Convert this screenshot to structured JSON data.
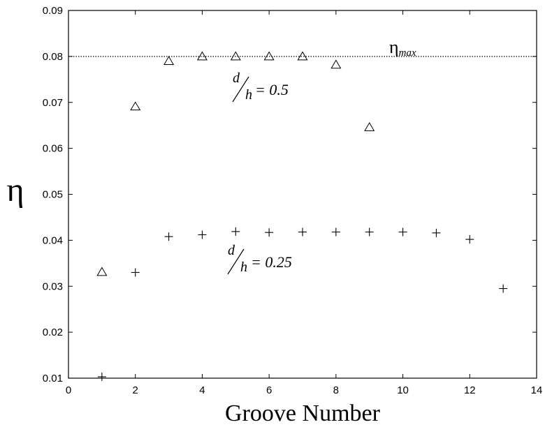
{
  "chart_data": {
    "type": "scatter",
    "xlabel": "Groove Number",
    "ylabel": "η",
    "xlim": [
      0,
      14
    ],
    "ylim": [
      0.01,
      0.09
    ],
    "xticks": [
      "0",
      "2",
      "4",
      "6",
      "8",
      "10",
      "12",
      "14"
    ],
    "yticks": [
      "0.01",
      "0.02",
      "0.03",
      "0.04",
      "0.05",
      "0.06",
      "0.07",
      "0.08",
      "0.09"
    ],
    "grid": false,
    "reference_line": {
      "y": 0.08,
      "style": "dotted",
      "label_main": "η",
      "label_sub": "max"
    },
    "series": [
      {
        "marker": "triangle",
        "x": [
          1,
          2,
          3,
          4,
          5,
          6,
          7,
          8,
          9
        ],
        "y": [
          0.033,
          0.069,
          0.0789,
          0.0799,
          0.0799,
          0.0799,
          0.0799,
          0.0781,
          0.0645
        ]
      },
      {
        "marker": "plus",
        "x": [
          1,
          2,
          3,
          4,
          5,
          6,
          7,
          8,
          9,
          10,
          11,
          12,
          13
        ],
        "y": [
          0.0103,
          0.033,
          0.0408,
          0.0412,
          0.0419,
          0.0417,
          0.0418,
          0.0418,
          0.0418,
          0.0418,
          0.0416,
          0.0402,
          0.0295
        ]
      }
    ],
    "annotations": [
      {
        "id": "d05",
        "numerator": "d",
        "denominator": "h",
        "value_text": "= 0.5"
      },
      {
        "id": "d025",
        "numerator": "d",
        "denominator": "h",
        "value_text": "= 0.25"
      }
    ]
  }
}
